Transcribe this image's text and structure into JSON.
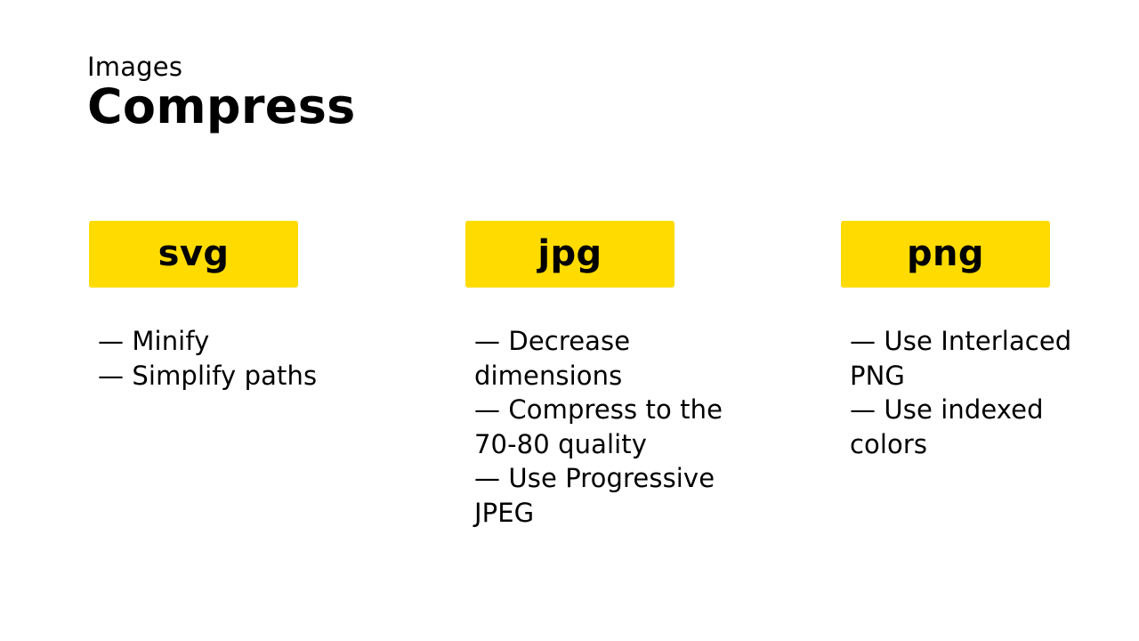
{
  "slide": {
    "eyebrow": "Images",
    "title": "Compress"
  },
  "columns": [
    {
      "tag": "svg",
      "tips": [
        "— Minify",
        "— Simplify paths"
      ]
    },
    {
      "tag": "jpg",
      "tips": [
        "— Decrease dimensions",
        "— Compress to the 70-80 quality",
        "— Use Progressive JPEG"
      ]
    },
    {
      "tag": "png",
      "tips": [
        "— Use Interlaced PNG",
        "— Use indexed colors"
      ]
    }
  ],
  "colors": {
    "accent": "#ffdb00",
    "text": "#000000",
    "background": "#ffffff"
  }
}
